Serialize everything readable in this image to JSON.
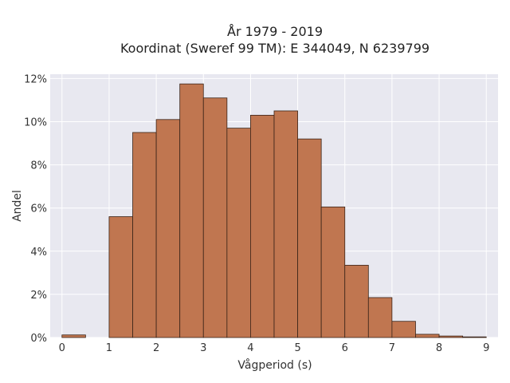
{
  "chart_data": {
    "type": "bar",
    "title_lines": [
      "År 1979 - 2019",
      "Koordinat (Sweref 99 TM): E 344049, N 6239799"
    ],
    "xlabel": "Vågperiod (s)",
    "ylabel": "Andel",
    "xlim": [
      -0.25,
      9.25
    ],
    "ylim": [
      0,
      0.122
    ],
    "x_ticks": [
      0,
      1,
      2,
      3,
      4,
      5,
      6,
      7,
      8,
      9
    ],
    "y_ticks": [
      0,
      0.02,
      0.04,
      0.06,
      0.08,
      0.1,
      0.12
    ],
    "y_tick_labels": [
      "0%",
      "2%",
      "4%",
      "6%",
      "8%",
      "10%",
      "12%"
    ],
    "bin_width": 0.5,
    "bins": [
      {
        "start": 0.0,
        "value": 0.0012
      },
      {
        "start": 0.5,
        "value": 0.0
      },
      {
        "start": 1.0,
        "value": 0.056
      },
      {
        "start": 1.5,
        "value": 0.095
      },
      {
        "start": 2.0,
        "value": 0.101
      },
      {
        "start": 2.5,
        "value": 0.1175
      },
      {
        "start": 3.0,
        "value": 0.111
      },
      {
        "start": 3.5,
        "value": 0.097
      },
      {
        "start": 4.0,
        "value": 0.103
      },
      {
        "start": 4.5,
        "value": 0.105
      },
      {
        "start": 5.0,
        "value": 0.092
      },
      {
        "start": 5.5,
        "value": 0.0605
      },
      {
        "start": 6.0,
        "value": 0.0335
      },
      {
        "start": 6.5,
        "value": 0.0185
      },
      {
        "start": 7.0,
        "value": 0.0075
      },
      {
        "start": 7.5,
        "value": 0.0015
      },
      {
        "start": 8.0,
        "value": 0.0007
      },
      {
        "start": 8.5,
        "value": 0.0003
      }
    ],
    "colors": {
      "plot_bg": "#e8e8f0",
      "grid": "#ffffff",
      "bar_fill": "#c07650",
      "bar_edge": "#3a2418"
    },
    "grid": true,
    "legend": "none"
  }
}
